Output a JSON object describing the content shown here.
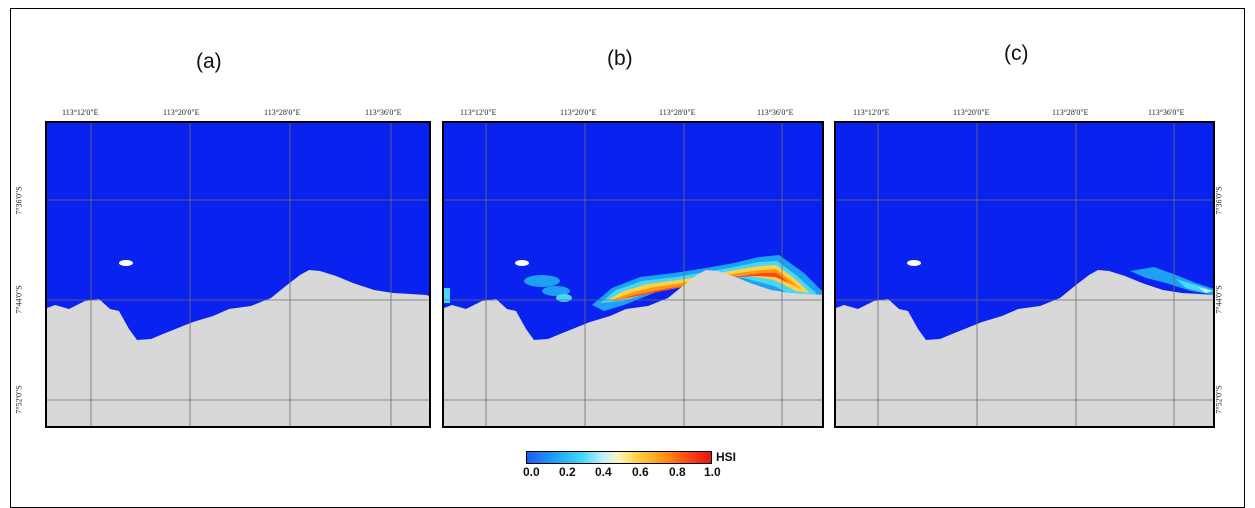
{
  "panels": [
    {
      "label": "(a)",
      "lon_ticks": [
        "113°12'0\"E",
        "113°20'0\"E",
        "113°28'0\"E",
        "113°36'0\"E"
      ],
      "lat_ticks": [
        "7°36'0\"S",
        "7°44'0\"S",
        "7°52'0\"S"
      ],
      "hotspot": "none"
    },
    {
      "label": "(b)",
      "lon_ticks": [
        "113°12'0\"E",
        "113°20'0\"E",
        "113°28'0\"E",
        "113°36'0\"E"
      ],
      "lat_ticks": [
        "7°36'0\"S",
        "7°44'0\"S",
        "7°52'0\"S"
      ],
      "hotspot": "strong coastal band"
    },
    {
      "label": "(c)",
      "lon_ticks": [
        "113°12'0\"E",
        "113°20'0\"E",
        "113°28'0\"E",
        "113°36'0\"E"
      ],
      "lat_ticks": [
        "7°36'0\"S",
        "7°44'0\"S",
        "7°52'0\"S"
      ],
      "hotspot": "weak eastern edge"
    }
  ],
  "legend": {
    "title": "HSI",
    "ticks": [
      "0.0",
      "0.2",
      "0.4",
      "0.6",
      "0.8",
      "1.0"
    ],
    "range": [
      0.0,
      1.0
    ]
  },
  "colors": {
    "sea": "#0a22f0",
    "land": "#d8d8d8",
    "grid": "#6e6e6e",
    "hsi_low": "#1e5cf0",
    "hsi_high": "#e61414"
  }
}
